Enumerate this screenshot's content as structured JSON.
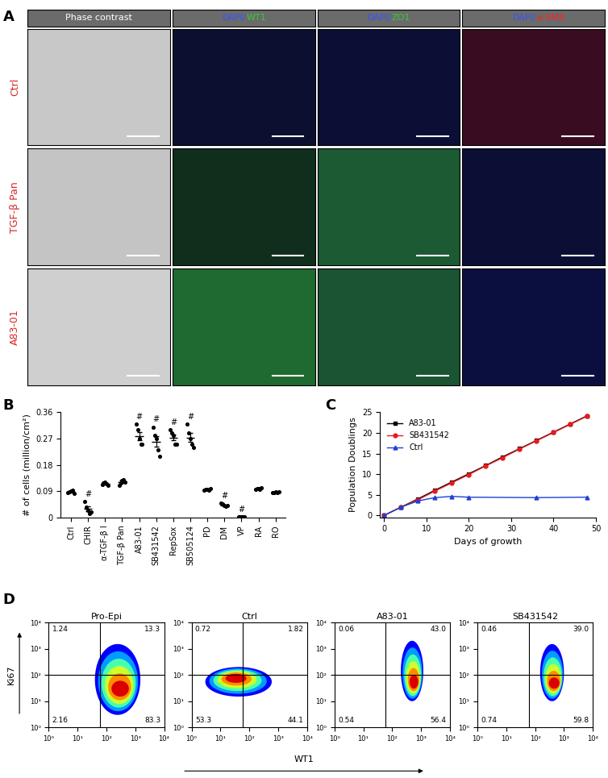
{
  "panel_labels": [
    "A",
    "B",
    "C",
    "D"
  ],
  "micrographs": {
    "columns": [
      "Phase contrast",
      "DAPI/WT1",
      "DAPI/ZO1",
      "DAPI/α-SMA"
    ],
    "rows": [
      "Ctrl",
      "TGF-β Pan",
      "A83-01"
    ]
  },
  "chart_data": [
    {
      "type": "dot_plot",
      "categories": [
        "Ctrl",
        "CHIR",
        "α-TGF-β I",
        "TGF-β Pan",
        "A83-01",
        "SB431542",
        "RepSox",
        "SB505124",
        "PD",
        "DM",
        "VP",
        "RA",
        "RO"
      ],
      "values": [
        0.088,
        0.029,
        0.115,
        0.121,
        0.278,
        0.26,
        0.274,
        0.274,
        0.095,
        0.042,
        0.0014,
        0.098,
        0.086
      ],
      "sem": [
        0.002,
        0.008,
        0.002,
        0.004,
        0.014,
        0.018,
        0.01,
        0.015,
        0.0015,
        0.002,
        0.0003,
        0.0013,
        0.0006
      ],
      "points": [
        [
          0.085,
          0.088,
          0.09,
          0.092,
          0.083
        ],
        [
          0.055,
          0.035,
          0.025,
          0.012,
          0.018
        ],
        [
          0.112,
          0.118,
          0.12,
          0.115,
          0.11
        ],
        [
          0.11,
          0.118,
          0.125,
          0.13,
          0.12
        ],
        [
          0.32,
          0.3,
          0.27,
          0.25,
          0.25
        ],
        [
          0.31,
          0.28,
          0.27,
          0.23,
          0.21
        ],
        [
          0.3,
          0.29,
          0.28,
          0.25,
          0.25
        ],
        [
          0.32,
          0.29,
          0.27,
          0.25,
          0.24
        ],
        [
          0.092,
          0.095,
          0.097,
          0.093,
          0.1
        ],
        [
          0.048,
          0.045,
          0.04,
          0.037,
          0.042
        ],
        [
          0.001,
          0.002,
          0.001,
          0.002,
          0.001
        ],
        [
          0.095,
          0.098,
          0.1,
          0.096,
          0.102
        ],
        [
          0.084,
          0.086,
          0.088,
          0.085,
          0.087
        ]
      ],
      "annotations": [
        null,
        "#",
        null,
        null,
        "#",
        "#",
        "#",
        "#",
        null,
        "#",
        "#",
        null,
        null
      ],
      "ylabel": "# of cells (million/cm²)",
      "ylim": [
        0,
        0.36
      ],
      "yticks": [
        0,
        0.09,
        0.18,
        0.27,
        0.36
      ]
    },
    {
      "type": "line",
      "xlabel": "Days of growth",
      "ylabel": "Population Doublings",
      "xlim": [
        -1,
        50
      ],
      "ylim": [
        -0.5,
        25
      ],
      "xticks": [
        0,
        10,
        20,
        30,
        40,
        50
      ],
      "yticks": [
        0,
        5,
        10,
        15,
        20,
        25
      ],
      "legend": "upper left",
      "series": [
        {
          "name": "A83-01",
          "color": "#000000",
          "marker": "square",
          "x": [
            0,
            4,
            8,
            12,
            16,
            20,
            24,
            28,
            32,
            36,
            40,
            44,
            48
          ],
          "values": [
            0,
            2.0,
            4.0,
            6.1,
            8.1,
            10.1,
            12.1,
            14.2,
            16.2,
            18.2,
            20.2,
            22.2,
            24.2
          ]
        },
        {
          "name": "SB431542",
          "color": "#e8191e",
          "marker": "circle",
          "x": [
            0,
            4,
            8,
            12,
            16,
            20,
            24,
            28,
            32,
            36,
            40,
            44,
            48
          ],
          "values": [
            0,
            2.0,
            3.8,
            5.9,
            7.9,
            9.9,
            12.0,
            14.0,
            16.1,
            18.1,
            20.1,
            22.1,
            24.1
          ]
        },
        {
          "name": "Ctrl",
          "color": "#1f3fd6",
          "marker": "triangle",
          "x": [
            0,
            4,
            8,
            12,
            16,
            20,
            36,
            48
          ],
          "values": [
            0,
            2.0,
            3.5,
            4.3,
            4.6,
            4.4,
            4.3,
            4.4
          ]
        }
      ]
    },
    {
      "type": "density",
      "xlabel": "WT1",
      "ylabel": "Ki67",
      "log": true,
      "xlim": [
        1,
        10000
      ],
      "ylim": [
        1,
        10000
      ],
      "xticks": [
        {
          "value": 1,
          "label": "10⁰"
        },
        {
          "value": 10,
          "label": "10¹"
        },
        {
          "value": 100,
          "label": "10²"
        },
        {
          "value": 1000,
          "label": "10³"
        },
        {
          "value": 10000,
          "label": "10⁴"
        }
      ],
      "yticks": [
        {
          "value": 1,
          "label": "10⁰"
        },
        {
          "value": 10,
          "label": "10¹"
        },
        {
          "value": 100,
          "label": "10²"
        },
        {
          "value": 1000,
          "label": "10³"
        },
        {
          "value": 10000,
          "label": "10⁴"
        }
      ],
      "gate": {
        "x": 60,
        "y": 100
      },
      "panels": [
        {
          "title": "Pro-Epi",
          "quadrants": {
            "upper_left": 1.24,
            "upper_right": 13.3,
            "lower_left": 2.16,
            "lower_right": 83.3
          },
          "populations": [
            {
              "x": [
                40,
                1500
              ],
              "y": [
                3,
                1500
              ]
            },
            {
              "x": [
                150,
                600
              ],
              "y": [
                15,
                60
              ]
            }
          ]
        },
        {
          "title": "Ctrl",
          "quadrants": {
            "upper_left": 0.72,
            "upper_right": 1.82,
            "lower_left": 53.3,
            "lower_right": 44.1
          },
          "populations": [
            {
              "x": [
                3,
                600
              ],
              "y": [
                15,
                200
              ]
            },
            {
              "x": [
                15,
                80
              ],
              "y": [
                50,
                110
              ]
            }
          ]
        },
        {
          "title": "A83-01",
          "quadrants": {
            "upper_left": 0.06,
            "upper_right": 43.0,
            "lower_left": 0.54,
            "lower_right": 56.4
          },
          "populations": [
            {
              "x": [
                200,
                1200
              ],
              "y": [
                10,
                2000
              ]
            },
            {
              "x": [
                400,
                800
              ],
              "y": [
                30,
                100
              ]
            }
          ]
        },
        {
          "title": "SB431542",
          "quadrants": {
            "upper_left": 0.46,
            "upper_right": 39.0,
            "lower_left": 0.74,
            "lower_right": 59.8
          },
          "populations": [
            {
              "x": [
                150,
                1000
              ],
              "y": [
                10,
                1500
              ]
            },
            {
              "x": [
                300,
                700
              ],
              "y": [
                30,
                80
              ]
            }
          ]
        }
      ]
    }
  ]
}
